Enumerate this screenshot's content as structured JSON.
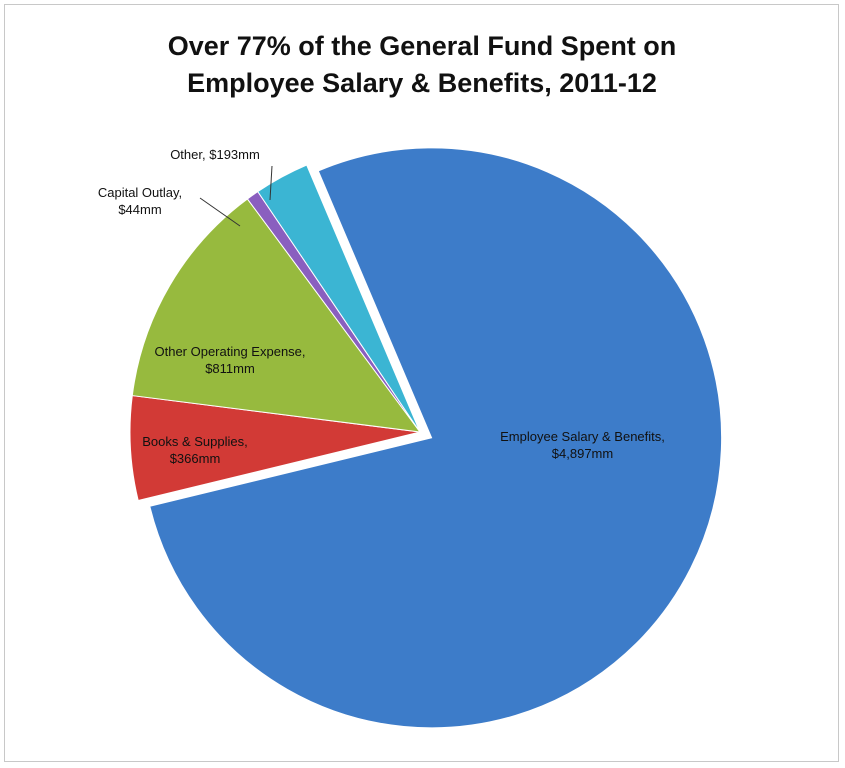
{
  "chart_data": {
    "type": "pie",
    "title": [
      "Over 77% of the General Fund Spent on",
      "Employee Salary & Benefits, 2011-12"
    ],
    "categories": [
      "Employee Salary & Benefits,",
      "Books & Supplies,",
      "Other Operating Expense,",
      "Capital Outlay,",
      "Other,"
    ],
    "values": [
      4897,
      366,
      811,
      44,
      193
    ],
    "value_labels": [
      "$4,897mm",
      "$366mm",
      "$811mm",
      "$44mm",
      "$193mm"
    ],
    "colors": [
      "#3d7cc9",
      "#d23a36",
      "#97ba3e",
      "#8a5fbf",
      "#3bb5d3"
    ]
  }
}
